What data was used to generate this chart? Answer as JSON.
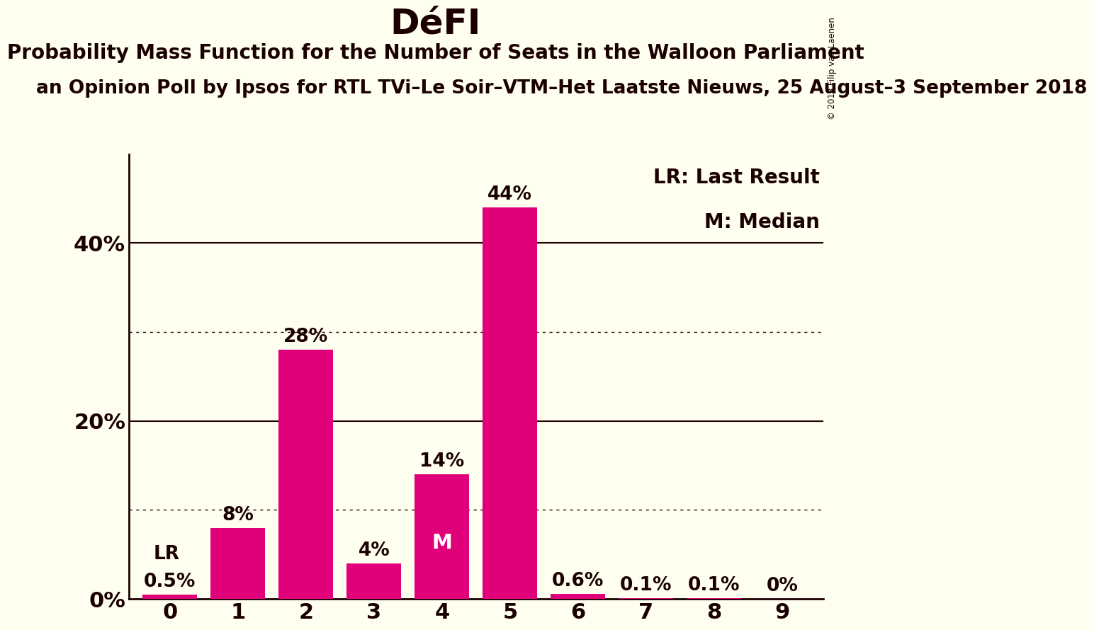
{
  "title": "DéFI",
  "subtitle": "Probability Mass Function for the Number of Seats in the Walloon Parliament",
  "poll_line": "an Opinion Poll by Ipsos for RTL TVi–Le Soir–VTM–Het Laatste Nieuws, 25 August–3 September 2018",
  "seats": [
    0,
    1,
    2,
    3,
    4,
    5,
    6,
    7,
    8,
    9
  ],
  "probabilities": [
    0.5,
    8.0,
    28.0,
    4.0,
    14.0,
    44.0,
    0.6,
    0.1,
    0.1,
    0.0
  ],
  "bar_color": "#E0007A",
  "background_color": "#FFFFF0",
  "text_color": "#1A0000",
  "bar_labels": [
    "0.5%",
    "8%",
    "28%",
    "4%",
    "14%",
    "44%",
    "0.6%",
    "0.1%",
    "0.1%",
    "0%"
  ],
  "lr_seat": 0,
  "median_seat": 4,
  "yticks_solid": [
    0,
    20,
    40
  ],
  "yticks_dotted": [
    10,
    30
  ],
  "ylim": [
    0,
    50
  ],
  "copyright": "© 2018 Filip van Laenen",
  "legend_lr": "LR: Last Result",
  "legend_m": "M: Median",
  "title_fontsize": 36,
  "subtitle_fontsize": 20,
  "poll_fontsize": 19,
  "bar_label_fontsize": 19,
  "axis_label_fontsize": 22,
  "legend_fontsize": 20
}
